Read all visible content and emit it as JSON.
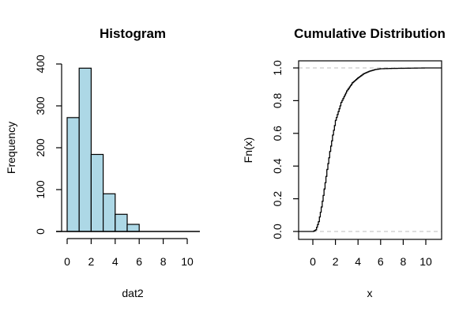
{
  "chart_data": [
    {
      "type": "bar",
      "title": "Histogram",
      "xlabel": "dat2",
      "ylabel": "Frequency",
      "bin_edges": [
        0,
        1,
        2,
        3,
        4,
        5,
        6
      ],
      "values": [
        272,
        390,
        184,
        90,
        41,
        17
      ],
      "bar_color": "#ADD8E6",
      "xlim": [
        0,
        11
      ],
      "ylim": [
        0,
        400
      ],
      "xticks": [
        "0",
        "2",
        "4",
        "6",
        "8",
        "10"
      ],
      "yticks": [
        "0",
        "100",
        "200",
        "300",
        "400"
      ],
      "grid": false
    },
    {
      "type": "line",
      "title": "Cumulative Distribution",
      "xlabel": "x",
      "ylabel": "Fn(x)",
      "x": [
        0,
        0.25,
        0.5,
        0.75,
        1.0,
        1.25,
        1.5,
        1.75,
        2.0,
        2.5,
        3.0,
        3.5,
        4.0,
        4.5,
        5.0,
        5.5,
        6.0,
        7.0,
        8.0,
        9.0,
        10.0
      ],
      "y": [
        0.0,
        0.01,
        0.06,
        0.15,
        0.26,
        0.38,
        0.49,
        0.59,
        0.68,
        0.79,
        0.86,
        0.91,
        0.94,
        0.965,
        0.98,
        0.99,
        0.995,
        0.997,
        0.998,
        0.999,
        1.0
      ],
      "hlines": [
        0,
        1
      ],
      "xlim": [
        -1.5,
        11.5
      ],
      "ylim": [
        -0.05,
        1.05
      ],
      "xticks": [
        "0",
        "2",
        "4",
        "6",
        "8",
        "10"
      ],
      "yticks": [
        "0.0",
        "0.2",
        "0.4",
        "0.6",
        "0.8",
        "1.0"
      ],
      "line_color": "#000000",
      "hline_color": "#BEBEBE",
      "grid": false
    }
  ]
}
